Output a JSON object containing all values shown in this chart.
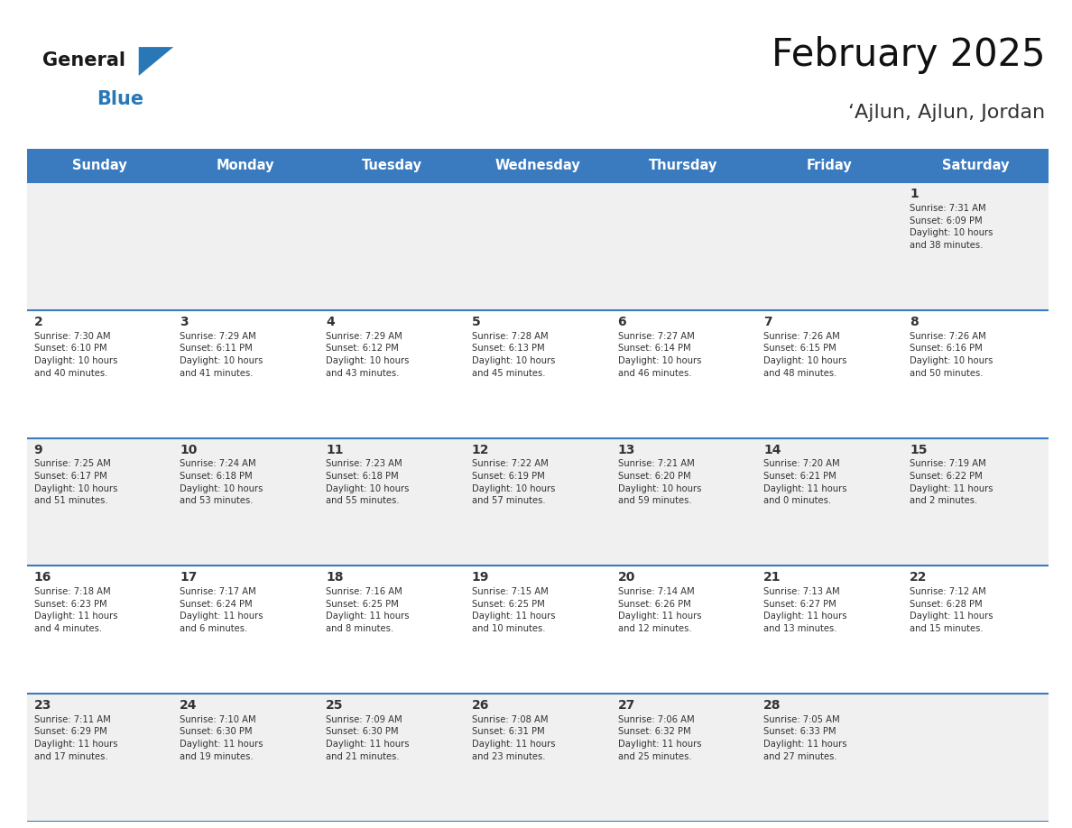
{
  "title": "February 2025",
  "subtitle": "‘Ajlun, Ajlun, Jordan",
  "header_bg": "#3a7bbf",
  "header_text_color": "#ffffff",
  "weekdays": [
    "Sunday",
    "Monday",
    "Tuesday",
    "Wednesday",
    "Thursday",
    "Friday",
    "Saturday"
  ],
  "row_bg_odd": "#f0f0f0",
  "row_bg_even": "#ffffff",
  "cell_border_color": "#3a7bbf",
  "day_color": "#333333",
  "info_color": "#333333",
  "logo_general_color": "#1a1a1a",
  "logo_blue_color": "#2878b8",
  "calendar": [
    [
      null,
      null,
      null,
      null,
      null,
      null,
      {
        "day": 1,
        "sunrise": "7:31 AM",
        "sunset": "6:09 PM",
        "daylight": "10 hours\nand 38 minutes."
      }
    ],
    [
      {
        "day": 2,
        "sunrise": "7:30 AM",
        "sunset": "6:10 PM",
        "daylight": "10 hours\nand 40 minutes."
      },
      {
        "day": 3,
        "sunrise": "7:29 AM",
        "sunset": "6:11 PM",
        "daylight": "10 hours\nand 41 minutes."
      },
      {
        "day": 4,
        "sunrise": "7:29 AM",
        "sunset": "6:12 PM",
        "daylight": "10 hours\nand 43 minutes."
      },
      {
        "day": 5,
        "sunrise": "7:28 AM",
        "sunset": "6:13 PM",
        "daylight": "10 hours\nand 45 minutes."
      },
      {
        "day": 6,
        "sunrise": "7:27 AM",
        "sunset": "6:14 PM",
        "daylight": "10 hours\nand 46 minutes."
      },
      {
        "day": 7,
        "sunrise": "7:26 AM",
        "sunset": "6:15 PM",
        "daylight": "10 hours\nand 48 minutes."
      },
      {
        "day": 8,
        "sunrise": "7:26 AM",
        "sunset": "6:16 PM",
        "daylight": "10 hours\nand 50 minutes."
      }
    ],
    [
      {
        "day": 9,
        "sunrise": "7:25 AM",
        "sunset": "6:17 PM",
        "daylight": "10 hours\nand 51 minutes."
      },
      {
        "day": 10,
        "sunrise": "7:24 AM",
        "sunset": "6:18 PM",
        "daylight": "10 hours\nand 53 minutes."
      },
      {
        "day": 11,
        "sunrise": "7:23 AM",
        "sunset": "6:18 PM",
        "daylight": "10 hours\nand 55 minutes."
      },
      {
        "day": 12,
        "sunrise": "7:22 AM",
        "sunset": "6:19 PM",
        "daylight": "10 hours\nand 57 minutes."
      },
      {
        "day": 13,
        "sunrise": "7:21 AM",
        "sunset": "6:20 PM",
        "daylight": "10 hours\nand 59 minutes."
      },
      {
        "day": 14,
        "sunrise": "7:20 AM",
        "sunset": "6:21 PM",
        "daylight": "11 hours\nand 0 minutes."
      },
      {
        "day": 15,
        "sunrise": "7:19 AM",
        "sunset": "6:22 PM",
        "daylight": "11 hours\nand 2 minutes."
      }
    ],
    [
      {
        "day": 16,
        "sunrise": "7:18 AM",
        "sunset": "6:23 PM",
        "daylight": "11 hours\nand 4 minutes."
      },
      {
        "day": 17,
        "sunrise": "7:17 AM",
        "sunset": "6:24 PM",
        "daylight": "11 hours\nand 6 minutes."
      },
      {
        "day": 18,
        "sunrise": "7:16 AM",
        "sunset": "6:25 PM",
        "daylight": "11 hours\nand 8 minutes."
      },
      {
        "day": 19,
        "sunrise": "7:15 AM",
        "sunset": "6:25 PM",
        "daylight": "11 hours\nand 10 minutes."
      },
      {
        "day": 20,
        "sunrise": "7:14 AM",
        "sunset": "6:26 PM",
        "daylight": "11 hours\nand 12 minutes."
      },
      {
        "day": 21,
        "sunrise": "7:13 AM",
        "sunset": "6:27 PM",
        "daylight": "11 hours\nand 13 minutes."
      },
      {
        "day": 22,
        "sunrise": "7:12 AM",
        "sunset": "6:28 PM",
        "daylight": "11 hours\nand 15 minutes."
      }
    ],
    [
      {
        "day": 23,
        "sunrise": "7:11 AM",
        "sunset": "6:29 PM",
        "daylight": "11 hours\nand 17 minutes."
      },
      {
        "day": 24,
        "sunrise": "7:10 AM",
        "sunset": "6:30 PM",
        "daylight": "11 hours\nand 19 minutes."
      },
      {
        "day": 25,
        "sunrise": "7:09 AM",
        "sunset": "6:30 PM",
        "daylight": "11 hours\nand 21 minutes."
      },
      {
        "day": 26,
        "sunrise": "7:08 AM",
        "sunset": "6:31 PM",
        "daylight": "11 hours\nand 23 minutes."
      },
      {
        "day": 27,
        "sunrise": "7:06 AM",
        "sunset": "6:32 PM",
        "daylight": "11 hours\nand 25 minutes."
      },
      {
        "day": 28,
        "sunrise": "7:05 AM",
        "sunset": "6:33 PM",
        "daylight": "11 hours\nand 27 minutes."
      },
      null
    ]
  ]
}
